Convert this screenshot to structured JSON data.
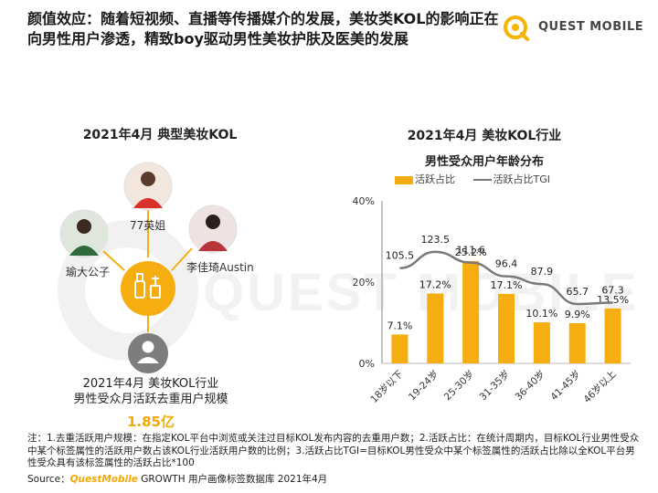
{
  "title": "颜值效应：随着短视频、直播等传播媒介的发展，美妆类KOL的影响正在向男性用户渗透，精致boy驱动男性美妆护肤及医美的发展",
  "logo_text": "QUEST MOBILE",
  "watermark_text": "QUEST MOBILE",
  "left_panel": {
    "heading": "2021年4月 典型美妆KOL",
    "kols": [
      {
        "name": "77英姐"
      },
      {
        "name": "瑜大公子"
      },
      {
        "name": "李佳琦Austin"
      }
    ],
    "center_icon": "cosmetics-icon",
    "user_icon": "user-icon",
    "summary_line1": "2021年4月 美妆KOL行业",
    "summary_line2": "男性受众月活跃去重用户规模",
    "summary_value": "1.85亿"
  },
  "chart_data": {
    "type": "bar",
    "title": "2021年4月 美妆KOL行业",
    "subtitle": "男性受众用户年龄分布",
    "categories": [
      "18岁以下",
      "19-24岁",
      "25-30岁",
      "31-35岁",
      "36-40岁",
      "41-45岁",
      "46岁以上"
    ],
    "series": [
      {
        "name": "活跃占比",
        "kind": "bar",
        "values": [
          7.1,
          17.2,
          25.2,
          17.1,
          10.1,
          9.9,
          13.5
        ],
        "labels": [
          "7.1%",
          "17.2%",
          "25.2%",
          "17.1%",
          "10.1%",
          "9.9%",
          "13.5%"
        ],
        "color": "#f5ad10"
      },
      {
        "name": "活跃占比TGI",
        "kind": "line",
        "values": [
          105.5,
          123.5,
          111.6,
          96.4,
          87.9,
          65.7,
          67.3
        ],
        "labels": [
          "105.5",
          "123.5",
          "111.6",
          "96.4",
          "87.9",
          "65.7",
          "67.3"
        ],
        "color": "#7a7a7a"
      }
    ],
    "y_ticks": [
      "0%",
      "20%",
      "40%"
    ],
    "ylim": [
      0,
      40
    ],
    "tgi_range": [
      0,
      180
    ],
    "grid": false,
    "legend": "top"
  },
  "notes": "注：1.去重活跃用户规模：在指定KOL平台中浏览或关注过目标KOL发布内容的去重用户数；2.活跃占比：在统计周期内，目标KOL行业男性受众中某个标签属性的活跃用户数占该KOL行业活跃用户数的比例；3.活跃占比TGI=目标KOL男性受众中某个标签属性的活跃占比除以全KOL平台男性受众具有该标签属性的活跃占比*100",
  "source": {
    "prefix": "Source：",
    "brand": "QuestMobile",
    "suffix": " GROWTH 用户画像标签数据库 2021年4月"
  }
}
